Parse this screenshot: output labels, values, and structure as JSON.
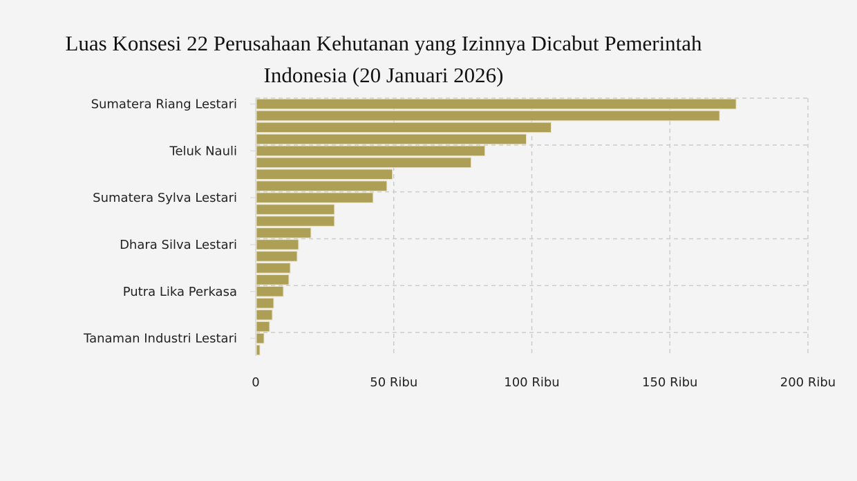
{
  "chart_data": {
    "type": "bar",
    "orientation": "horizontal",
    "title_line1": "Luas Konsesi 22 Perusahaan Kehutanan yang Izinnya Dicabut Pemerintah",
    "title_line2": "Indonesia (20 Januari 2026)",
    "categories": [
      "Sumatera Riang Lestari",
      "",
      "",
      "",
      "Teluk Nauli",
      "",
      "",
      "",
      "Sumatera Sylva Lestari",
      "",
      "",
      "",
      "Dhara Silva Lestari",
      "",
      "",
      "",
      "Putra Lika Perkasa",
      "",
      "",
      "",
      "Tanaman Industri Lestari",
      ""
    ],
    "values": [
      174000,
      168000,
      107000,
      98000,
      83000,
      78000,
      49500,
      47500,
      42500,
      28500,
      28500,
      20000,
      15500,
      15000,
      12500,
      12000,
      10000,
      6500,
      6000,
      5000,
      3000,
      1500
    ],
    "xlim": [
      0,
      200000
    ],
    "x_ticks": [
      0,
      50000,
      100000,
      150000,
      200000
    ],
    "x_tick_labels": [
      "0",
      "50 Ribu",
      "100 Ribu",
      "150 Ribu",
      "200 Ribu"
    ],
    "xlabel": "",
    "ylabel": "",
    "grid": true,
    "bar_color": "#ae9f57"
  }
}
